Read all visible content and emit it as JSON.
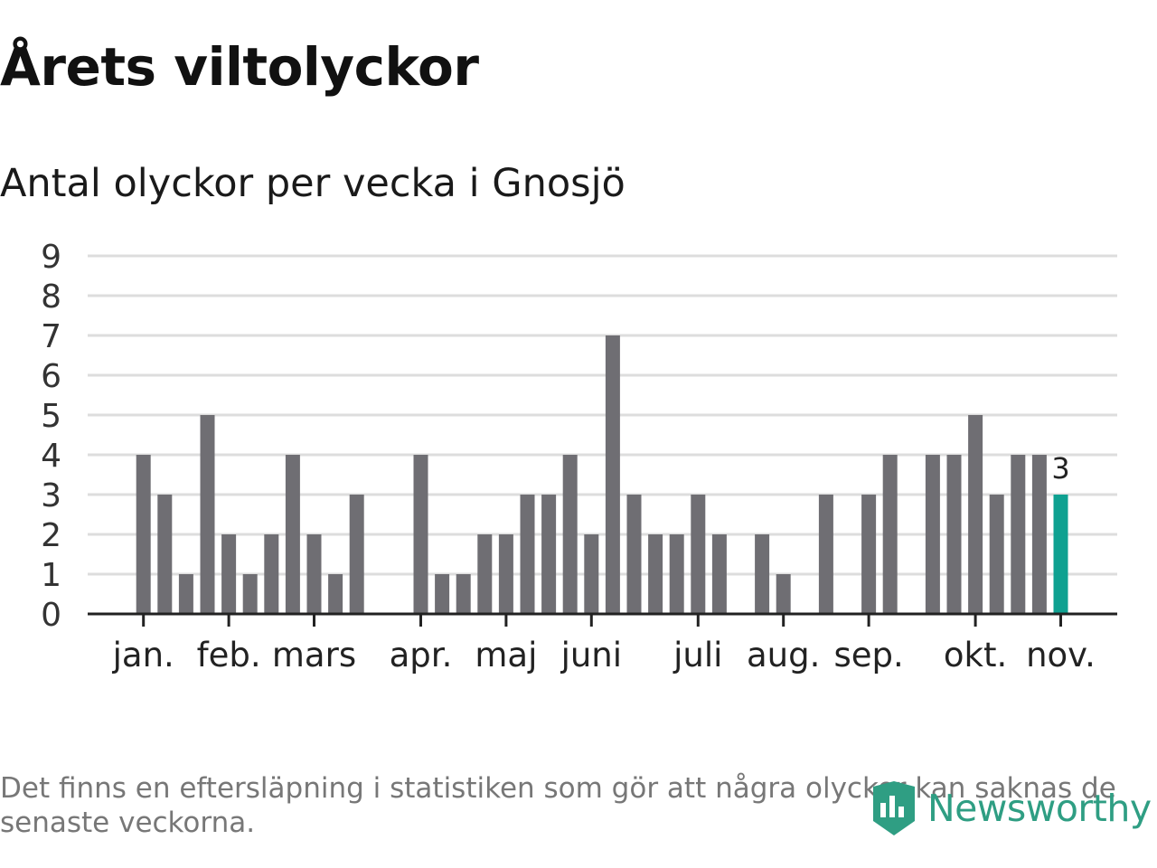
{
  "header": {
    "title": "Årets viltolyckor",
    "subtitle": "Antal olyckor per vecka i Gnosjö"
  },
  "footer": {
    "note": "Det finns en eftersläpning i statistiken som gör att några olyckor kan saknas de senaste veckorna.",
    "logo_text": "Newsworthy"
  },
  "colors": {
    "bar": "#6f6e73",
    "highlight": "#0fa191",
    "grid": "#dddddd",
    "axis": "#222222",
    "logo": "#2f9e83"
  },
  "chart_data": {
    "type": "bar",
    "title": "Antal olyckor per vecka i Gnosjö",
    "xlabel": "",
    "ylabel": "",
    "ylim": [
      0,
      9
    ],
    "yticks": [
      "0",
      "1",
      "2",
      "3",
      "4",
      "5",
      "6",
      "7",
      "8",
      "9"
    ],
    "grid": true,
    "weeks": [
      1,
      2,
      3,
      4,
      5,
      6,
      7,
      8,
      9,
      10,
      11,
      12,
      13,
      14,
      15,
      16,
      17,
      18,
      19,
      20,
      21,
      22,
      23,
      24,
      25,
      26,
      27,
      28,
      29,
      30,
      31,
      32,
      33,
      34,
      35,
      36,
      37,
      38,
      39,
      40,
      41,
      42,
      43,
      44,
      45,
      46,
      47,
      48
    ],
    "values": [
      0,
      0,
      4,
      3,
      1,
      5,
      2,
      1,
      2,
      4,
      2,
      1,
      3,
      0,
      0,
      4,
      1,
      1,
      2,
      2,
      3,
      3,
      4,
      2,
      7,
      3,
      2,
      2,
      3,
      2,
      0,
      2,
      1,
      0,
      3,
      0,
      3,
      4,
      0,
      4,
      4,
      5,
      3,
      4,
      4,
      3,
      0,
      0
    ],
    "highlight_index": 45,
    "highlight_label": "3",
    "months": [
      {
        "label": "jan.",
        "week": 3
      },
      {
        "label": "feb.",
        "week": 7
      },
      {
        "label": "mars",
        "week": 11
      },
      {
        "label": "apr.",
        "week": 16
      },
      {
        "label": "maj",
        "week": 20
      },
      {
        "label": "juni",
        "week": 24
      },
      {
        "label": "juli",
        "week": 29
      },
      {
        "label": "aug.",
        "week": 33
      },
      {
        "label": "sep.",
        "week": 37
      },
      {
        "label": "okt.",
        "week": 42
      },
      {
        "label": "nov.",
        "week": 46
      }
    ]
  }
}
